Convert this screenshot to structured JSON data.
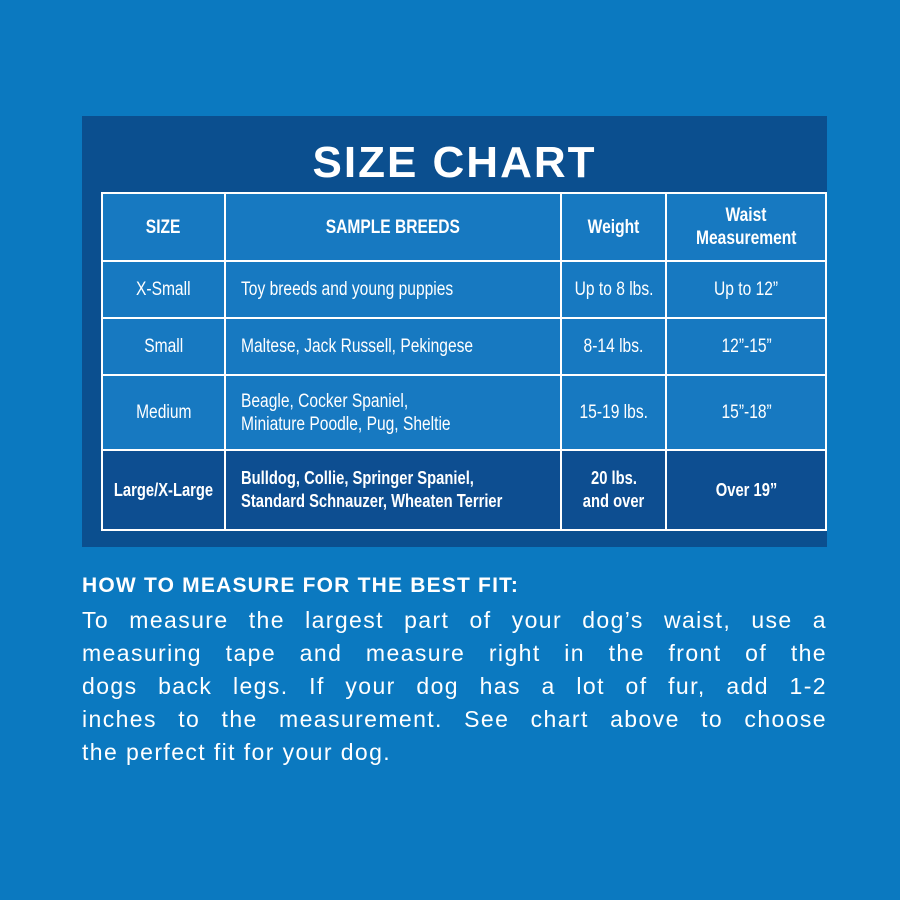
{
  "title": "SIZE CHART",
  "table": {
    "header": [
      "SIZE",
      "SAMPLE BREEDS",
      "Weight",
      [
        "Waist",
        "Measurement"
      ]
    ],
    "rows": [
      [
        "X-Small",
        "Toy breeds and young puppies",
        "Up to 8 lbs.",
        "Up to 12”"
      ],
      [
        "Small",
        "Maltese, Jack Russell, Pekingese",
        "8-14 lbs.",
        "12”-15”"
      ],
      [
        "Medium",
        [
          "Beagle, Cocker Spaniel,",
          "Miniature Poodle, Pug, Sheltie"
        ],
        "15-19 lbs.",
        "15”-18”"
      ],
      [
        "Large/X-Large",
        [
          "Bulldog, Collie, Springer Spaniel,",
          "Standard Schnauzer, Wheaten Terrier"
        ],
        [
          "20 lbs.",
          "and over"
        ],
        "Over 19”"
      ]
    ]
  },
  "instructions": {
    "heading": "HOW TO MEASURE FOR THE BEST FIT:",
    "lines": [
      "To measure the largest part of your dog’s waist, use a",
      "measuring tape and measure right in the front of the",
      "dogs back legs. If your dog has a lot of fur, add 1-2",
      "inches to the measurement. See chart above to choose",
      "the perfect fit for your dog."
    ]
  }
}
